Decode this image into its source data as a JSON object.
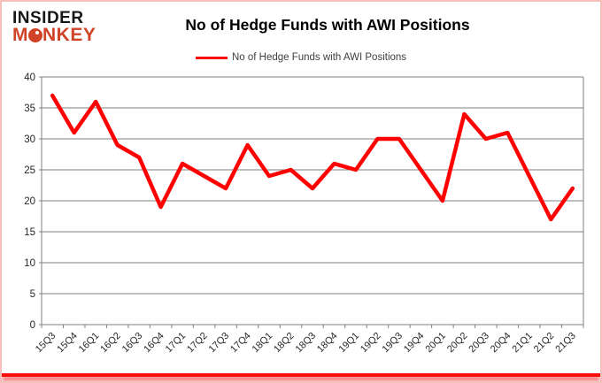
{
  "brand": {
    "line1": "INSIDER",
    "line2_pre": "M",
    "line2_post": "NKEY"
  },
  "header": {
    "title": "No of Hedge Funds with AWI Positions"
  },
  "legend": {
    "label": "No of Hedge Funds with AWI Positions"
  },
  "colors": {
    "line": "#ff0000",
    "grid": "#808080",
    "axis_text": "#262626",
    "brand_black": "#171717",
    "brand_red": "#d04327",
    "legend_text": "#3f3f3f",
    "border_pink": "#f5c0ba",
    "bottom_glow": "#fb0d0d"
  },
  "chart_data": {
    "type": "line",
    "title": "No of Hedge Funds with AWI Positions",
    "categories": [
      "15Q3",
      "15Q4",
      "16Q1",
      "16Q2",
      "16Q3",
      "16Q4",
      "17Q1",
      "17Q2",
      "17Q3",
      "17Q4",
      "18Q1",
      "18Q2",
      "18Q3",
      "18Q4",
      "19Q1",
      "19Q2",
      "19Q3",
      "19Q4",
      "20Q1",
      "20Q2",
      "20Q3",
      "20Q4",
      "21Q1",
      "21Q2",
      "21Q3"
    ],
    "series": [
      {
        "name": "No of Hedge Funds with AWI Positions",
        "values": [
          37,
          31,
          36,
          29,
          27,
          19,
          26,
          24,
          22,
          29,
          24,
          25,
          22,
          26,
          25,
          30,
          30,
          25,
          20,
          34,
          30,
          31,
          24,
          17,
          22
        ]
      }
    ],
    "xlabel": "",
    "ylabel": "",
    "ylim": [
      0,
      40
    ],
    "ytick_step": 5,
    "grid": true,
    "legend_position": "top-center"
  }
}
